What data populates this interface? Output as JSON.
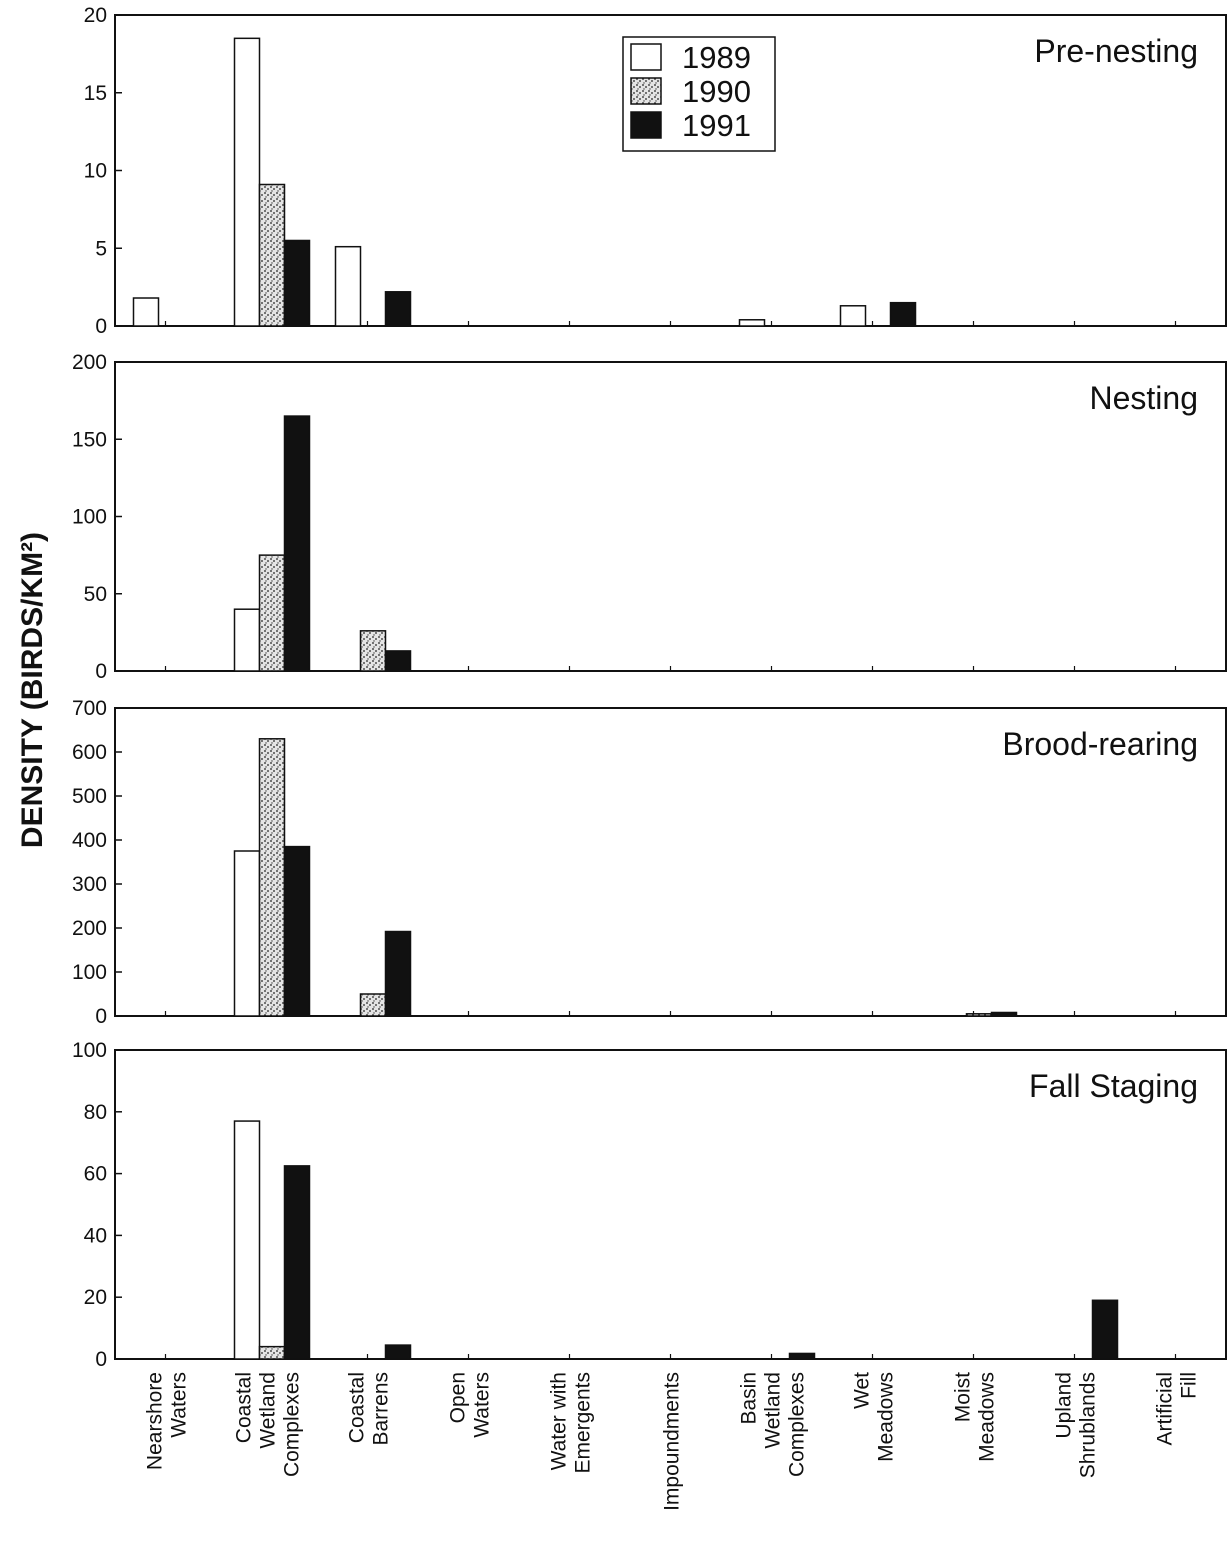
{
  "chart_data": {
    "type": "bar",
    "ylabel": "DENSITY (BIRDS/KM²)",
    "xlabel": "",
    "legend": {
      "placement": "top-center",
      "entries": [
        {
          "name": "1989",
          "style": "open",
          "color": "#ffffff"
        },
        {
          "name": "1990",
          "style": "stippled",
          "color": "#c8c8c8"
        },
        {
          "name": "1991",
          "style": "solid",
          "color": "#111111"
        }
      ]
    },
    "categories": [
      [
        "Nearshore",
        "Waters"
      ],
      [
        "Coastal",
        "Wetland",
        "Complexes"
      ],
      [
        "Coastal",
        "Barrens"
      ],
      [
        "Open",
        "Waters"
      ],
      [
        "Water with",
        "Emergents"
      ],
      [
        "Impoundments"
      ],
      [
        "Basin",
        "Wetland",
        "Complexes"
      ],
      [
        "Wet",
        "Meadows"
      ],
      [
        "Moist",
        "Meadows"
      ],
      [
        "Upland",
        "Shrublands"
      ],
      [
        "Artificial",
        "Fill"
      ]
    ],
    "panels": [
      {
        "title": "Pre-nesting",
        "ylim": [
          0,
          20
        ],
        "yticks": [
          0,
          5,
          10,
          15,
          20
        ],
        "series": [
          {
            "name": "1989",
            "values": [
              1.8,
              18.5,
              5.1,
              0,
              0,
              0,
              0.4,
              1.3,
              0,
              0,
              0
            ]
          },
          {
            "name": "1990",
            "values": [
              0,
              9.1,
              0,
              0,
              0,
              0,
              0,
              0,
              0,
              0,
              0
            ]
          },
          {
            "name": "1991",
            "values": [
              0,
              5.5,
              2.2,
              0,
              0,
              0,
              0,
              1.5,
              0,
              0,
              0
            ]
          }
        ]
      },
      {
        "title": "Nesting",
        "ylim": [
          0,
          200
        ],
        "yticks": [
          0,
          50,
          100,
          150,
          200
        ],
        "series": [
          {
            "name": "1989",
            "values": [
              0,
              40,
              0,
              0,
              0,
              0,
              0,
              0,
              0,
              0,
              0
            ]
          },
          {
            "name": "1990",
            "values": [
              0,
              75,
              26,
              0,
              0,
              0,
              0,
              0,
              0,
              0,
              0
            ]
          },
          {
            "name": "1991",
            "values": [
              0,
              165,
              13,
              0,
              0,
              0,
              0,
              0,
              0,
              0,
              0
            ]
          }
        ]
      },
      {
        "title": "Brood-rearing",
        "ylim": [
          0,
          700
        ],
        "yticks": [
          0,
          100,
          200,
          300,
          400,
          500,
          600,
          700
        ],
        "series": [
          {
            "name": "1989",
            "values": [
              0,
              375,
              0,
              0,
              0,
              0,
              0,
              0,
              0,
              0,
              0
            ]
          },
          {
            "name": "1990",
            "values": [
              0,
              630,
              50,
              0,
              0,
              0,
              0,
              0,
              5,
              0,
              0
            ]
          },
          {
            "name": "1991",
            "values": [
              0,
              385,
              192,
              0,
              0,
              0,
              0,
              0,
              8,
              0,
              0
            ]
          }
        ]
      },
      {
        "title": "Fall Staging",
        "ylim": [
          0,
          100
        ],
        "yticks": [
          0,
          20,
          40,
          60,
          80,
          100
        ],
        "series": [
          {
            "name": "1989",
            "values": [
              0,
              77,
              0,
              0,
              0,
              0,
              0,
              0,
              0,
              0,
              0
            ]
          },
          {
            "name": "1990",
            "values": [
              0,
              4,
              0,
              0,
              0,
              0,
              0,
              0,
              0,
              0,
              0
            ]
          },
          {
            "name": "1991",
            "values": [
              0,
              62.5,
              4.5,
              0,
              0,
              0,
              1.8,
              0,
              0,
              19,
              0
            ]
          }
        ]
      }
    ]
  }
}
